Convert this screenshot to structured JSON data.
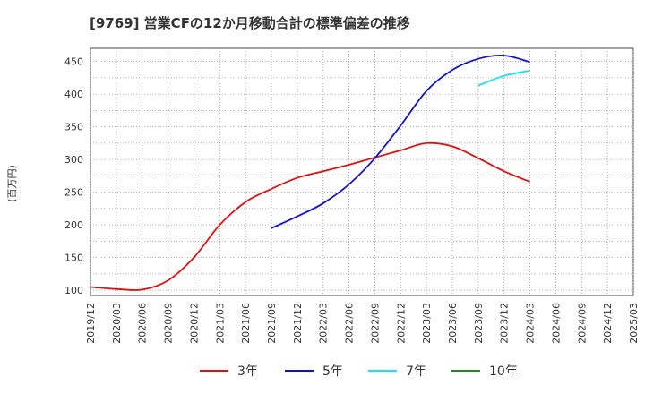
{
  "chart_data": {
    "type": "line",
    "title": "[9769]  営業CFの12か月移動合計の標準偏差の推移",
    "ylabel": "(百万円)",
    "xlabel": "",
    "ylim": [
      92,
      470
    ],
    "yticks": [
      100,
      150,
      200,
      250,
      300,
      350,
      400,
      450
    ],
    "x_ticks": [
      "2019/12",
      "2020/03",
      "2020/06",
      "2020/09",
      "2020/12",
      "2021/03",
      "2021/06",
      "2021/09",
      "2021/12",
      "2022/03",
      "2022/06",
      "2022/09",
      "2022/12",
      "2023/03",
      "2023/06",
      "2023/09",
      "2023/12",
      "2024/03",
      "2024/06",
      "2024/09",
      "2024/12",
      "2025/03"
    ],
    "grid": true,
    "legend_position": "bottom",
    "series": [
      {
        "name": "3年",
        "color": "#dd1111",
        "x": [
          "2019/12",
          "2020/03",
          "2020/06",
          "2020/09",
          "2020/12",
          "2021/03",
          "2021/06",
          "2021/09",
          "2021/12",
          "2022/03",
          "2022/06",
          "2022/09",
          "2022/12",
          "2023/03",
          "2023/06",
          "2023/09",
          "2023/12",
          "2024/03"
        ],
        "values": [
          105,
          102,
          101,
          115,
          150,
          200,
          235,
          255,
          272,
          282,
          292,
          303,
          314,
          325,
          320,
          302,
          282,
          266
        ]
      },
      {
        "name": "5年",
        "color": "#1111cc",
        "x": [
          "2021/09",
          "2021/12",
          "2022/03",
          "2022/06",
          "2022/09",
          "2022/12",
          "2023/03",
          "2023/06",
          "2023/09",
          "2023/12",
          "2024/03"
        ],
        "values": [
          195,
          213,
          233,
          262,
          302,
          352,
          405,
          437,
          454,
          459,
          449
        ]
      },
      {
        "name": "7年",
        "color": "#22ddee",
        "x": [
          "2023/09",
          "2023/12",
          "2024/03"
        ],
        "values": [
          413,
          428,
          436
        ]
      },
      {
        "name": "10年",
        "color": "#228822",
        "x": [],
        "values": []
      }
    ]
  }
}
